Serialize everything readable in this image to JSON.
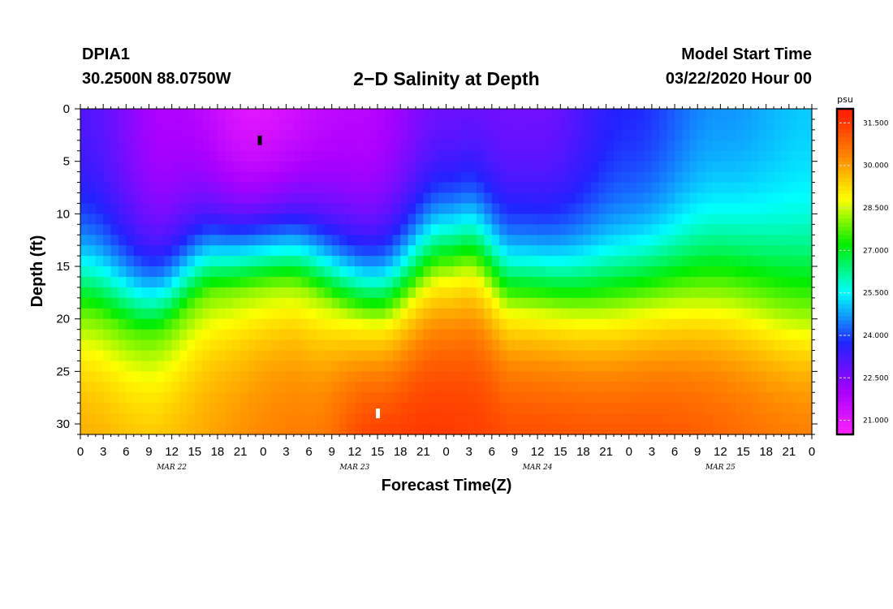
{
  "header": {
    "station": "DPIA1",
    "coords": "30.2500N 88.0750W",
    "title": "2−D Salinity at Depth",
    "model_start_label": "Model Start Time",
    "model_start_value": "03/22/2020 Hour 00"
  },
  "chart_data": {
    "type": "heatmap",
    "title": "2−D Salinity at Depth",
    "xlabel": "Forecast Time(Z)",
    "ylabel": "Depth (ft)",
    "x_tick_labels": [
      "0",
      "3",
      "6",
      "9",
      "12",
      "15",
      "18",
      "21",
      "0",
      "3",
      "6",
      "9",
      "12",
      "15",
      "18",
      "21",
      "0",
      "3",
      "6",
      "9",
      "12",
      "15",
      "18",
      "21",
      "0",
      "3",
      "6",
      "9",
      "12",
      "15",
      "18",
      "21",
      "0"
    ],
    "day_labels": [
      "MAR 22",
      "MAR 23",
      "MAR 24",
      "MAR 25"
    ],
    "x_range_hours": [
      0,
      96
    ],
    "y_ticks": [
      0,
      5,
      10,
      15,
      20,
      25,
      30
    ],
    "y_range_ft": [
      0,
      31
    ],
    "y_reversed": true,
    "colorbar": {
      "unit": "psu",
      "range": [
        20.5,
        32.0
      ],
      "tick_labels": [
        "31.500",
        "30.000",
        "28.500",
        "27.000",
        "25.500",
        "24.000",
        "22.500",
        "21.000"
      ],
      "tick_values": [
        31.5,
        30.0,
        28.5,
        27.0,
        25.5,
        24.0,
        22.5,
        21.0
      ],
      "colors": [
        "#ff22ff",
        "#aa00ff",
        "#2222ff",
        "#00ffff",
        "#00ee00",
        "#ffff00",
        "#ff8800",
        "#ff2200"
      ],
      "color_stops": [
        20.5,
        22.0,
        23.7,
        25.5,
        27.2,
        28.8,
        30.3,
        31.8
      ]
    },
    "markers": [
      {
        "name": "min-marker",
        "hour": 23.5,
        "depth_ft": 3.0,
        "color": "#000000"
      },
      {
        "name": "max-marker",
        "hour": 39.0,
        "depth_ft": 29.0,
        "color": "#ffffff"
      }
    ],
    "description_series": {
      "halocline_depth_ft": {
        "hours": [
          0,
          9,
          18,
          27,
          39,
          48,
          51,
          57,
          66,
          84,
          96
        ],
        "values": [
          19.5,
          21.5,
          17.5,
          17.0,
          20.8,
          16.5,
          16.0,
          19.5,
          20.0,
          18.5,
          20.0
        ]
      },
      "surface_salinity_psu": {
        "hours": [
          0,
          12,
          23,
          36,
          48,
          60,
          72,
          84,
          96
        ],
        "values": [
          23.0,
          21.8,
          20.8,
          21.6,
          22.5,
          22.6,
          23.6,
          24.5,
          25.0
        ]
      },
      "bottom_salinity_psu": {
        "hours": [
          0,
          9,
          30,
          39,
          60,
          72,
          96
        ],
        "values": [
          30.0,
          29.8,
          30.6,
          31.7,
          31.4,
          31.3,
          30.7
        ]
      }
    }
  }
}
